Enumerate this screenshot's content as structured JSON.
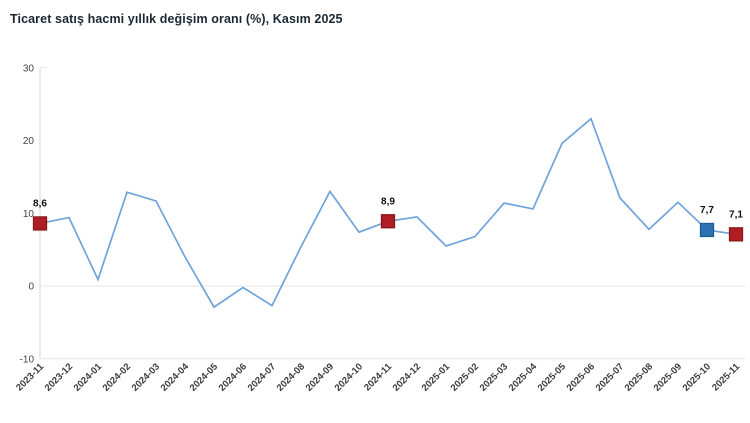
{
  "title": "Ticaret satış hacmi yıllık değişim oranı (%), Kasım 2025",
  "chart_data": {
    "type": "line",
    "title": "Ticaret satış hacmi yıllık değişim oranı (%), Kasım 2025",
    "categories": [
      "2023-11",
      "2023-12",
      "2024-01",
      "2024-02",
      "2024-03",
      "2024-04",
      "2024-05",
      "2024-06",
      "2024-07",
      "2024-08",
      "2024-09",
      "2024-10",
      "2024-11",
      "2024-12",
      "2025-01",
      "2025-02",
      "2025-03",
      "2025-04",
      "2025-05",
      "2025-06",
      "2025-07",
      "2025-08",
      "2025-09",
      "2025-10",
      "2025-11"
    ],
    "values": [
      8.6,
      9.4,
      0.9,
      12.9,
      11.7,
      4.0,
      -2.9,
      -0.2,
      -2.7,
      5.4,
      13.0,
      7.4,
      8.9,
      9.5,
      5.5,
      6.8,
      11.4,
      10.6,
      19.6,
      23.0,
      12.1,
      7.8,
      11.5,
      7.7,
      7.1
    ],
    "yticks": [
      30,
      20,
      10,
      0,
      "-10"
    ],
    "ytick_values": [
      30,
      20,
      10,
      0,
      -10
    ],
    "ylim": [
      -10,
      30
    ],
    "xlabel": "",
    "ylabel": "",
    "legend": "none",
    "grid": "horizontal lines at 0 and -10 only, left axis line",
    "line_color": "#6fa3dc",
    "grid_color": "#e4e4e4",
    "axis_color": "#d6d6d6",
    "tick_label_color": "#454545",
    "data_label_color": "#111111",
    "markers": [
      {
        "category": "2023-11",
        "index": 0,
        "value": 8.6,
        "label": "8,6",
        "fill": "#ae1e24",
        "border": "#8a171c"
      },
      {
        "category": "2024-11",
        "index": 12,
        "value": 8.9,
        "label": "8,9",
        "fill": "#ae1e24",
        "border": "#8a171c"
      },
      {
        "category": "2025-10",
        "index": 23,
        "value": 7.7,
        "label": "7,7",
        "fill": "#2d72b2",
        "border": "#1d5c94"
      },
      {
        "category": "2025-11",
        "index": 24,
        "value": 7.1,
        "label": "7,1",
        "fill": "#ae1e24",
        "border": "#8a171c"
      }
    ]
  }
}
